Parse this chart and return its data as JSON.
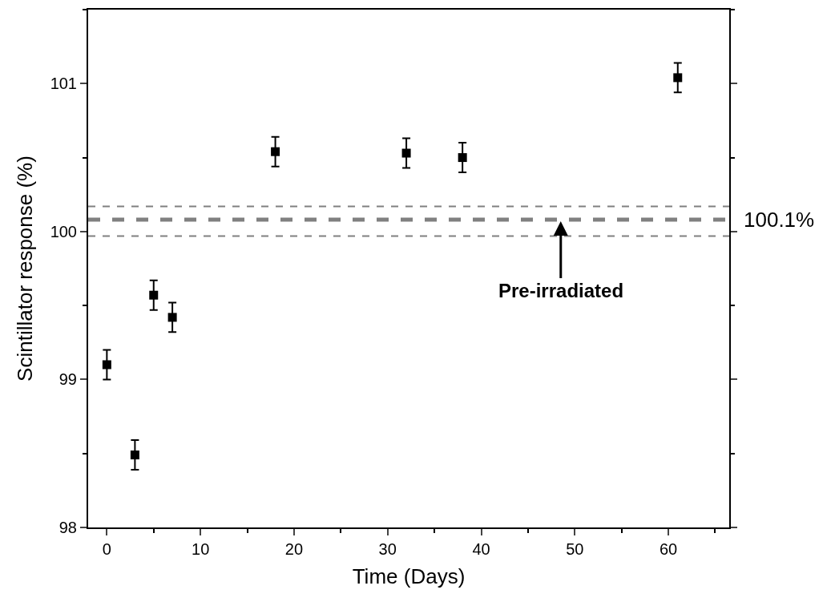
{
  "chart_data": {
    "type": "scatter",
    "xlabel": "Time (Days)",
    "ylabel": "Scintillator response (%)",
    "x": [
      0,
      3,
      5,
      7,
      18,
      32,
      38,
      61
    ],
    "series": [
      {
        "color": "#000000",
        "values": [
          99.1,
          98.49,
          99.57,
          99.42,
          100.54,
          100.53,
          100.5,
          101.04
        ],
        "errors": [
          0.1,
          0.1,
          0.1,
          0.1,
          0.1,
          0.1,
          0.1,
          0.1
        ]
      }
    ],
    "xlim": [
      -2,
      66.5
    ],
    "ylim": [
      98,
      101.5
    ],
    "xticks": [
      0,
      10,
      20,
      30,
      40,
      50,
      60
    ],
    "yticks": [
      98,
      99,
      100,
      101
    ],
    "ref_lines": [
      {
        "axis": "y",
        "value": 100.08,
        "label": "100.1%",
        "color": "#808080",
        "line_style": "dashed"
      },
      {
        "axis": "y",
        "value": 100.17,
        "color": "#808080",
        "line_style": "dashed"
      },
      {
        "axis": "y",
        "value": 99.97,
        "color": "#808080",
        "line_style": "dashed"
      }
    ],
    "annotations": [
      {
        "text": "Pre-irradiated",
        "x": 48.5,
        "y": 100.08
      }
    ],
    "marker": "square",
    "legend": false
  }
}
